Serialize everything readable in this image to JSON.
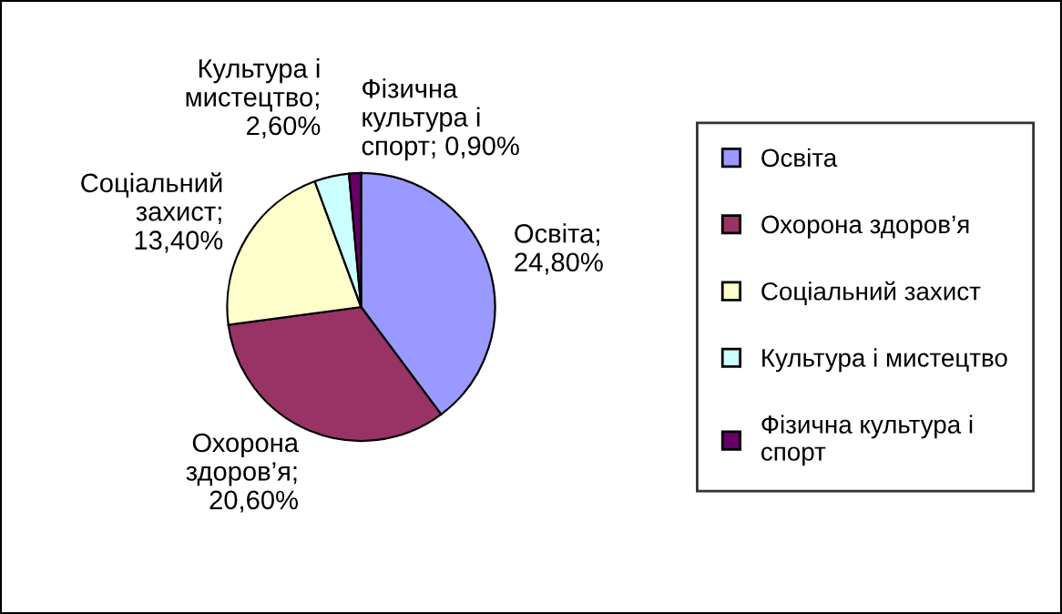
{
  "chart_data": {
    "type": "pie",
    "categories": [
      "Освіта",
      "Охорона здоров’я",
      "Соціальний захист",
      "Культура і мистецтво",
      "Фізична культура і спорт"
    ],
    "values": [
      24.8,
      20.6,
      13.4,
      2.6,
      0.9
    ],
    "colors": [
      "#9999ff",
      "#993366",
      "#ffffcc",
      "#ccffff",
      "#660066"
    ],
    "value_labels": [
      "Освіта; 24,80%",
      "Охорона здоров’я; 20,60%",
      "Соціальний захист; 13,40%",
      "Культура і мистецтво; 2,60%",
      "Фізична культура і спорт; 0,90%"
    ],
    "legend": "right"
  }
}
